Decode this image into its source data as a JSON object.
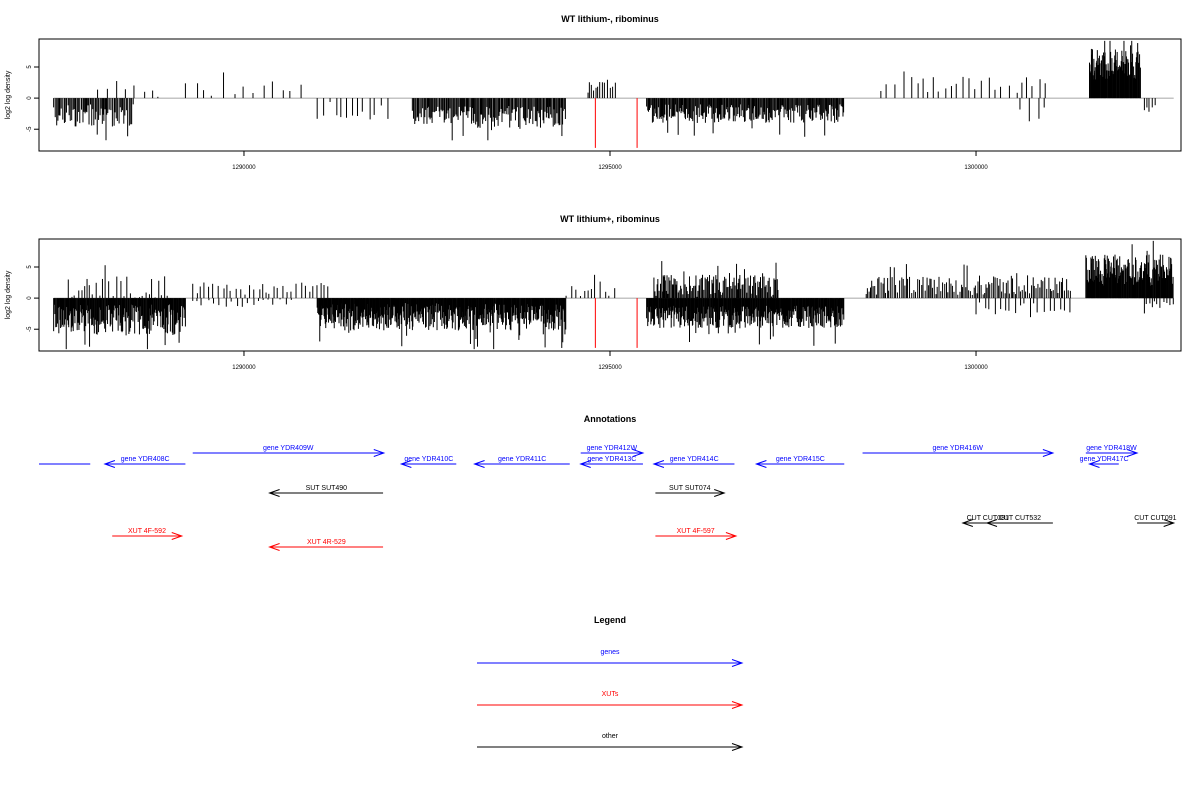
{
  "colors": {
    "genes": "#0000ff",
    "xuts": "#ff0000",
    "other": "#000000",
    "marker": "#ff0000"
  },
  "chart_data": [
    {
      "type": "bar",
      "title": "WT lithium-, ribominus",
      "ylabel": "log2 log density",
      "xlim": [
        1287200,
        1302800
      ],
      "ylim": [
        -8.5,
        9.5
      ],
      "xticks": [
        "1290000",
        "1295000",
        "1300000"
      ],
      "yticks": [
        "-5",
        "0",
        "5"
      ],
      "grid": false,
      "markers": [
        1294800,
        1295370
      ],
      "segments": [
        {
          "from": 1287400,
          "to": 1288500,
          "base": -2.8,
          "amp": 1.8,
          "dir": "down",
          "step": 17
        },
        {
          "from": 1288000,
          "to": 1288900,
          "base": 1.5,
          "amp": 1.3,
          "dir": "up",
          "step": 110
        },
        {
          "from": 1289200,
          "to": 1290800,
          "base": 1.5,
          "amp": 1.2,
          "dir": "up",
          "step": 120
        },
        {
          "from": 1291000,
          "to": 1292000,
          "base": -2.0,
          "amp": 1.5,
          "dir": "down",
          "step": 90
        },
        {
          "from": 1292300,
          "to": 1294400,
          "base": -3.0,
          "amp": 1.8,
          "dir": "down",
          "step": 14
        },
        {
          "from": 1294700,
          "to": 1295100,
          "base": 2.0,
          "amp": 1.3,
          "dir": "up",
          "step": 30
        },
        {
          "from": 1295500,
          "to": 1298200,
          "base": -2.5,
          "amp": 1.5,
          "dir": "down",
          "step": 12
        },
        {
          "from": 1298700,
          "to": 1301000,
          "base": 2.0,
          "amp": 1.5,
          "dir": "up",
          "step": 90
        },
        {
          "from": 1300600,
          "to": 1301000,
          "base": -2.0,
          "amp": 1.5,
          "dir": "down",
          "step": 100
        },
        {
          "from": 1301550,
          "to": 1302250,
          "base": 5.5,
          "amp": 2.5,
          "dir": "up",
          "step": 8
        },
        {
          "from": 1302300,
          "to": 1302450,
          "base": -1.5,
          "amp": 0.7,
          "dir": "down",
          "step": 40
        }
      ]
    },
    {
      "type": "bar",
      "title": "WT lithium+, ribominus",
      "ylabel": "log2 log density",
      "xlim": [
        1287200,
        1302800
      ],
      "ylim": [
        -8.5,
        9.5
      ],
      "xticks": [
        "1290000",
        "1295000",
        "1300000"
      ],
      "yticks": [
        "-5",
        "0",
        "5"
      ],
      "grid": false,
      "markers": [
        1294800,
        1295370
      ],
      "segments": [
        {
          "from": 1287400,
          "to": 1289200,
          "base": -3.5,
          "amp": 2.5,
          "dir": "down",
          "step": 9
        },
        {
          "from": 1287600,
          "to": 1289000,
          "base": 1.5,
          "amp": 2.0,
          "dir": "up",
          "step": 45
        },
        {
          "from": 1289300,
          "to": 1291200,
          "base": 1.5,
          "amp": 1.0,
          "dir": "up",
          "step": 60
        },
        {
          "from": 1289300,
          "to": 1290700,
          "base": -0.8,
          "amp": 0.6,
          "dir": "down",
          "step": 80
        },
        {
          "from": 1291000,
          "to": 1294400,
          "base": -3.0,
          "amp": 2.2,
          "dir": "down",
          "step": 8
        },
        {
          "from": 1294400,
          "to": 1295100,
          "base": 1.5,
          "amp": 1.2,
          "dir": "up",
          "step": 60
        },
        {
          "from": 1295500,
          "to": 1298200,
          "base": -3.0,
          "amp": 1.8,
          "dir": "down",
          "step": 8
        },
        {
          "from": 1295600,
          "to": 1297300,
          "base": 2.0,
          "amp": 1.8,
          "dir": "up",
          "step": 14
        },
        {
          "from": 1298500,
          "to": 1301300,
          "base": 2.0,
          "amp": 1.5,
          "dir": "up",
          "step": 22
        },
        {
          "from": 1300000,
          "to": 1301300,
          "base": -1.5,
          "amp": 1.2,
          "dir": "down",
          "step": 70
        },
        {
          "from": 1301500,
          "to": 1302700,
          "base": 4.5,
          "amp": 2.5,
          "dir": "up",
          "step": 8
        },
        {
          "from": 1302300,
          "to": 1302700,
          "base": -1.0,
          "amp": 0.6,
          "dir": "down",
          "step": 40
        }
      ]
    }
  ],
  "annotations": {
    "title": "Annotations",
    "features": [
      {
        "label": "",
        "type": "gene",
        "start": 1287000,
        "end": 1287900,
        "row": 1,
        "dir": "none"
      },
      {
        "label": "gene YDR408C",
        "type": "gene",
        "start": 1288100,
        "end": 1289200,
        "row": 1,
        "dir": "left"
      },
      {
        "label": "gene YDR409W",
        "type": "gene",
        "start": 1289300,
        "end": 1291910,
        "row": 0,
        "dir": "right"
      },
      {
        "label": "gene YDR410C",
        "type": "gene",
        "start": 1292150,
        "end": 1292900,
        "row": 1,
        "dir": "left"
      },
      {
        "label": "gene YDR411C",
        "type": "gene",
        "start": 1293150,
        "end": 1294450,
        "row": 1,
        "dir": "left"
      },
      {
        "label": "gene YDR412W",
        "type": "gene",
        "start": 1294600,
        "end": 1295450,
        "row": 0,
        "dir": "right"
      },
      {
        "label": "gene YDR413C",
        "type": "gene",
        "start": 1294600,
        "end": 1295450,
        "row": 1,
        "dir": "left"
      },
      {
        "label": "gene YDR414C",
        "type": "gene",
        "start": 1295600,
        "end": 1296700,
        "row": 1,
        "dir": "left"
      },
      {
        "label": "gene YDR415C",
        "type": "gene",
        "start": 1297000,
        "end": 1298200,
        "row": 1,
        "dir": "left"
      },
      {
        "label": "gene YDR416W",
        "type": "gene",
        "start": 1298450,
        "end": 1301050,
        "row": 0,
        "dir": "right"
      },
      {
        "label": "gene YDR418W",
        "type": "gene",
        "start": 1301500,
        "end": 1302200,
        "row": 0,
        "dir": "right"
      },
      {
        "label": "gene YDR417C",
        "type": "gene",
        "start": 1301550,
        "end": 1301950,
        "row": 1,
        "dir": "left"
      },
      {
        "label": "SUT SUT490",
        "type": "other",
        "start": 1290350,
        "end": 1291900,
        "row": 2,
        "dir": "left"
      },
      {
        "label": "SUT SUT074",
        "type": "other",
        "start": 1295620,
        "end": 1296560,
        "row": 2,
        "dir": "right"
      },
      {
        "label": "CUT CUT081",
        "type": "other",
        "start": 1299820,
        "end": 1300500,
        "row": 3,
        "dir": "left"
      },
      {
        "label": "CUT CUT532",
        "type": "other",
        "start": 1300150,
        "end": 1301050,
        "row": 3,
        "dir": "left"
      },
      {
        "label": "CUT CUT091",
        "type": "other",
        "start": 1302200,
        "end": 1302700,
        "row": 3,
        "dir": "right"
      },
      {
        "label": "XUT 4F-592",
        "type": "xut",
        "start": 1288200,
        "end": 1289150,
        "row": 4,
        "dir": "right"
      },
      {
        "label": "XUT 4R-529",
        "type": "xut",
        "start": 1290350,
        "end": 1291900,
        "row": 5,
        "dir": "left"
      },
      {
        "label": "XUT 4F-597",
        "type": "xut",
        "start": 1295620,
        "end": 1296720,
        "row": 4,
        "dir": "right"
      }
    ]
  },
  "legend": {
    "title": "Legend",
    "items": [
      {
        "label": "genes",
        "type": "gene"
      },
      {
        "label": "XUTs",
        "type": "xut"
      },
      {
        "label": "other",
        "type": "other"
      }
    ]
  }
}
